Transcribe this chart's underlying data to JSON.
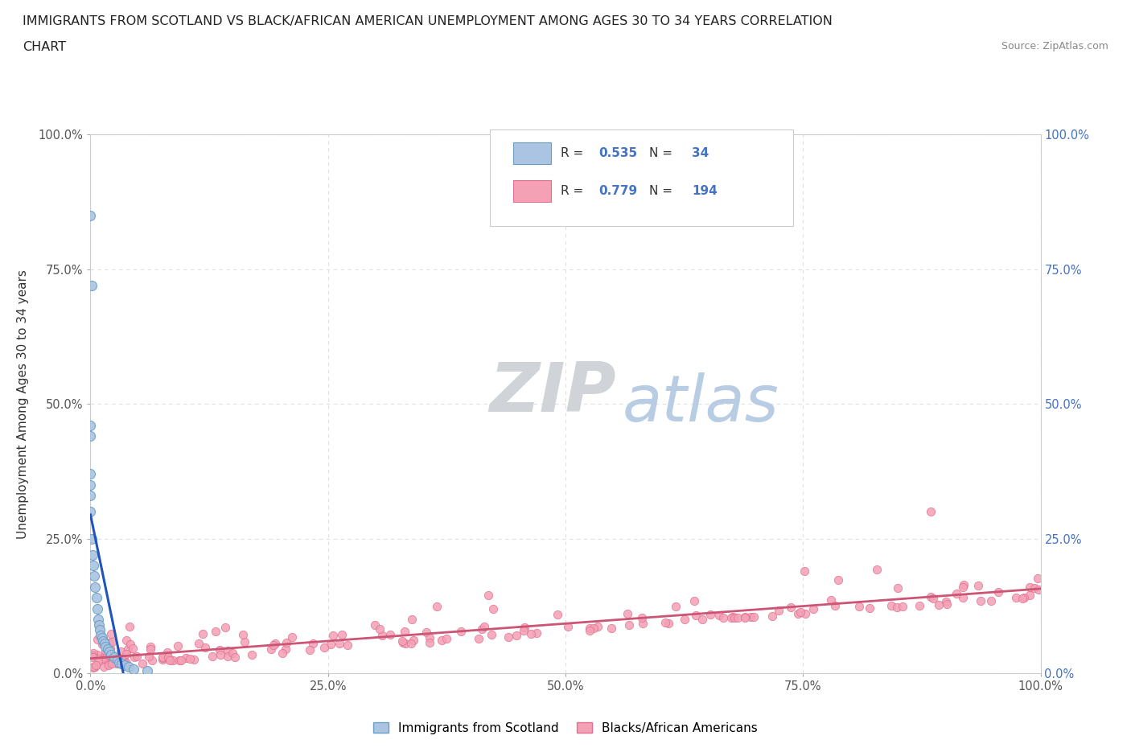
{
  "title_line1": "IMMIGRANTS FROM SCOTLAND VS BLACK/AFRICAN AMERICAN UNEMPLOYMENT AMONG AGES 30 TO 34 YEARS CORRELATION",
  "title_line2": "CHART",
  "source_text": "Source: ZipAtlas.com",
  "ylabel": "Unemployment Among Ages 30 to 34 years",
  "xlim": [
    0.0,
    1.0
  ],
  "ylim": [
    0.0,
    1.0
  ],
  "xticks": [
    0.0,
    0.25,
    0.5,
    0.75,
    1.0
  ],
  "yticks": [
    0.0,
    0.25,
    0.5,
    0.75,
    1.0
  ],
  "xticklabels": [
    "0.0%",
    "25.0%",
    "50.0%",
    "75.0%",
    "100.0%"
  ],
  "yticklabels": [
    "0.0%",
    "25.0%",
    "50.0%",
    "75.0%",
    "100.0%"
  ],
  "scotland_color": "#aac4e2",
  "scotland_edge_color": "#6b9fc4",
  "pink_color": "#f4a0b5",
  "pink_edge_color": "#e07090",
  "blue_line_color": "#2255bb",
  "pink_line_color": "#cc5575",
  "background_color": "#ffffff",
  "grid_color": "#e0e0e0",
  "watermark_zip_color": "#d0d4d8",
  "watermark_atlas_color": "#b8cce4",
  "right_tick_color": "#4472c4",
  "legend_R1": "R = 0.535",
  "legend_N1": "N =  34",
  "legend_R2": "R = 0.779",
  "legend_N2": "N = 194",
  "legend_text_color": "#333333",
  "legend_value_color": "#4472c4"
}
